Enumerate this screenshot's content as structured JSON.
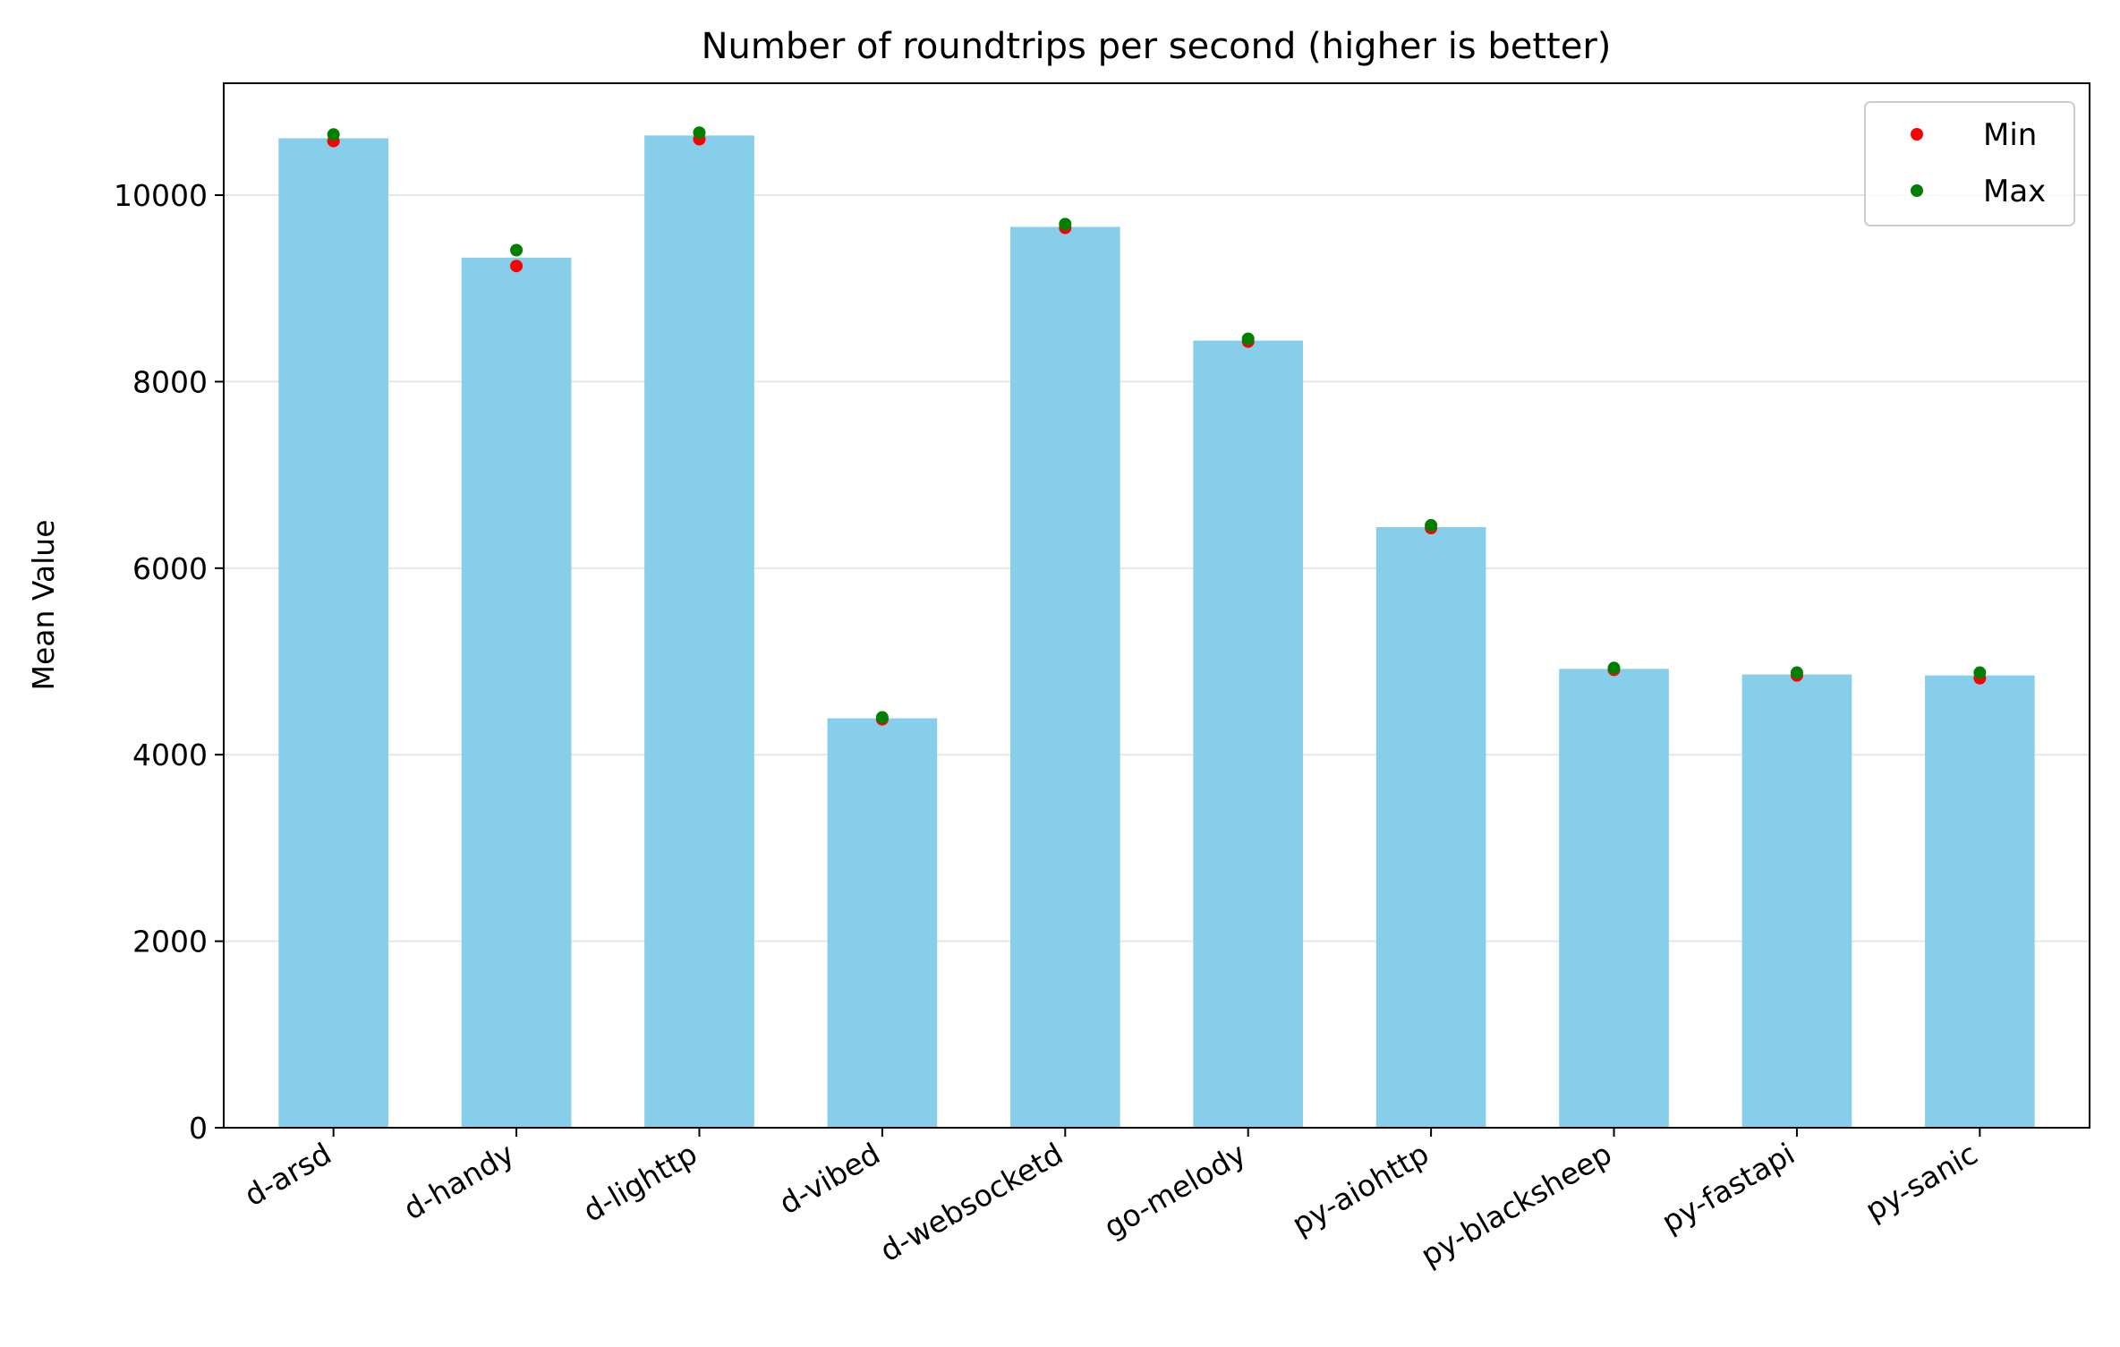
{
  "chart_data": {
    "type": "bar",
    "title": "Number of roundtrips per second (higher is better)",
    "xlabel": "",
    "ylabel": "Mean Value",
    "ylim": [
      0,
      11200
    ],
    "yticks": [
      0,
      2000,
      4000,
      6000,
      8000,
      10000
    ],
    "grid": "horizontal",
    "legend_position": "top-right",
    "categories": [
      "d-arsd",
      "d-handy",
      "d-lighttp",
      "d-vibed",
      "d-websocketd",
      "go-melody",
      "py-aiohttp",
      "py-blacksheep",
      "py-fastapi",
      "py-sanic"
    ],
    "values": [
      10610,
      9330,
      10640,
      4390,
      9660,
      8440,
      6440,
      4920,
      4860,
      4850
    ],
    "min": [
      10580,
      9240,
      10600,
      4380,
      9650,
      8430,
      6430,
      4910,
      4850,
      4820
    ],
    "max": [
      10650,
      9410,
      10670,
      4400,
      9690,
      8460,
      6460,
      4930,
      4880,
      4880
    ],
    "legend": [
      {
        "name": "Min",
        "color": "#ff0000"
      },
      {
        "name": "Max",
        "color": "#008000"
      }
    ],
    "colors": {
      "bar": "#87ceeb",
      "min": "#ff0000",
      "max": "#008000"
    }
  }
}
